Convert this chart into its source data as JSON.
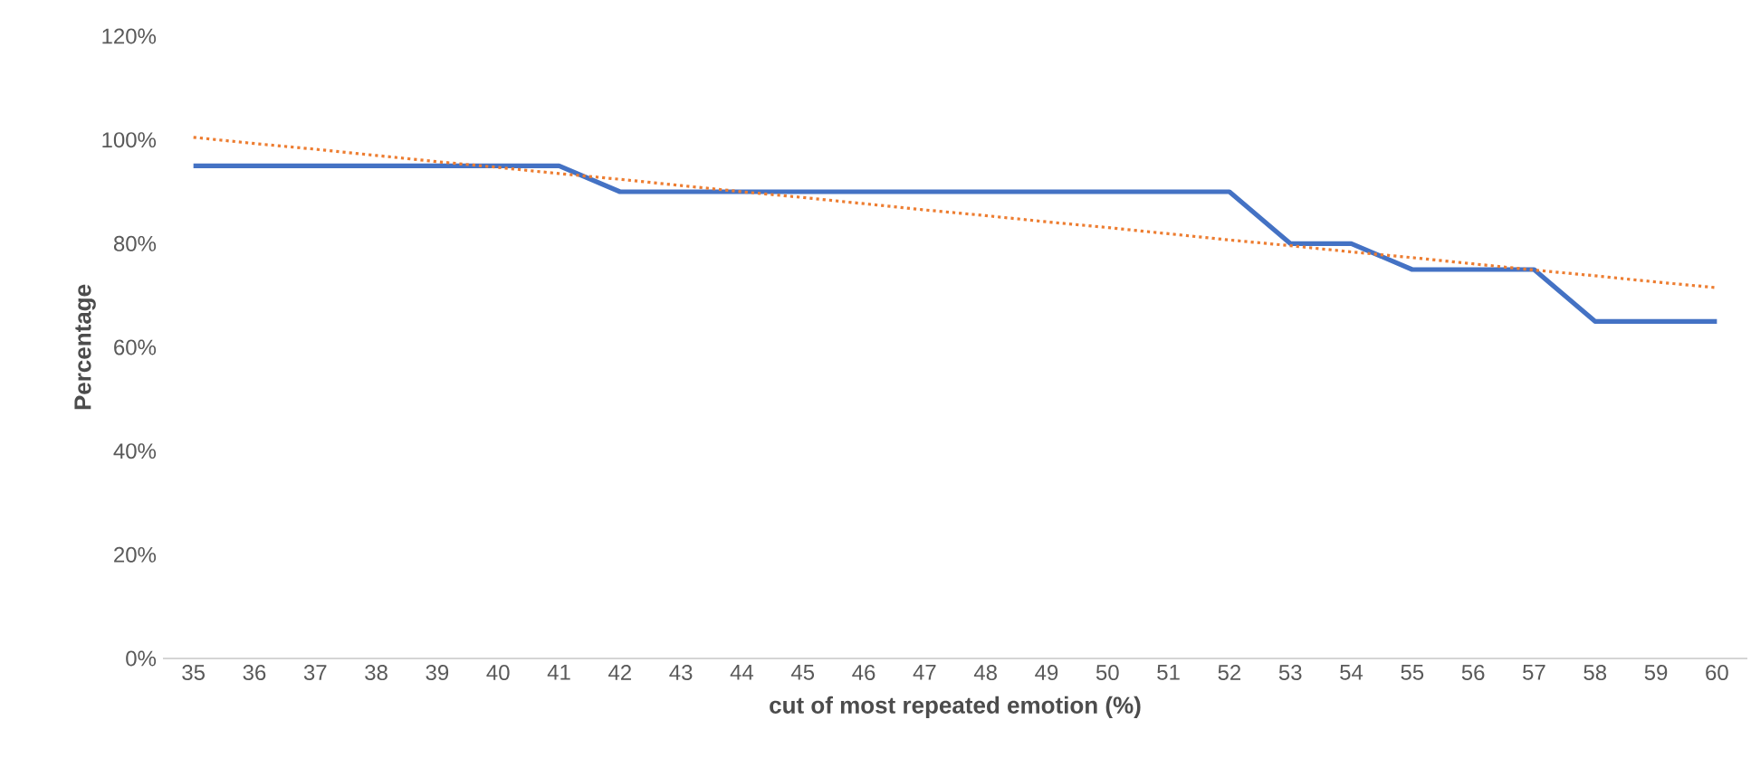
{
  "chart_data": {
    "type": "line",
    "xlabel": "cut of most repeated emotion (%)",
    "ylabel": "Percentage",
    "categories": [
      "35",
      "36",
      "37",
      "38",
      "39",
      "40",
      "41",
      "42",
      "43",
      "44",
      "45",
      "46",
      "47",
      "48",
      "49",
      "50",
      "51",
      "52",
      "53",
      "54",
      "55",
      "56",
      "57",
      "58",
      "59",
      "60"
    ],
    "series": [
      {
        "color": "#4472c4",
        "line_style": "solid",
        "values": [
          95,
          95,
          95,
          95,
          95,
          95,
          95,
          90,
          90,
          90,
          90,
          90,
          90,
          90,
          90,
          90,
          90,
          90,
          80,
          80,
          75,
          75,
          75,
          65,
          65,
          65
        ]
      },
      {
        "color": "#ed7d31",
        "line_style": "dotted",
        "values": [
          100.5,
          99.3,
          98.2,
          97.0,
          95.8,
          94.7,
          93.5,
          92.4,
          91.2,
          90.0,
          88.9,
          87.7,
          86.5,
          85.4,
          84.2,
          83.1,
          81.9,
          80.7,
          79.6,
          78.4,
          77.3,
          76.1,
          74.9,
          73.8,
          72.6,
          71.5
        ]
      }
    ],
    "marker": "none",
    "ylim": [
      0,
      120
    ],
    "yticks": [
      {
        "value": 0,
        "label": "0%"
      },
      {
        "value": 20,
        "label": "20%"
      },
      {
        "value": 40,
        "label": "40%"
      },
      {
        "value": 60,
        "label": "60%"
      },
      {
        "value": 80,
        "label": "80%"
      },
      {
        "value": 100,
        "label": "100%"
      },
      {
        "value": 120,
        "label": "120%"
      }
    ]
  }
}
